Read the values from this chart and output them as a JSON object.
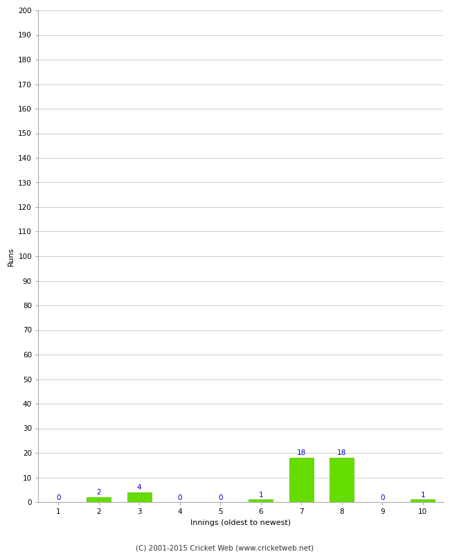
{
  "xlabel": "Innings (oldest to newest)",
  "ylabel": "Runs",
  "categories": [
    1,
    2,
    3,
    4,
    5,
    6,
    7,
    8,
    9,
    10
  ],
  "values": [
    0,
    2,
    4,
    0,
    0,
    1,
    18,
    18,
    0,
    1
  ],
  "bar_color": "#66dd00",
  "bar_edge_color": "#55bb00",
  "label_color": "#0000cc",
  "ylim": [
    0,
    200
  ],
  "yticks": [
    0,
    10,
    20,
    30,
    40,
    50,
    60,
    70,
    80,
    90,
    100,
    110,
    120,
    130,
    140,
    150,
    160,
    170,
    180,
    190,
    200
  ],
  "background_color": "#ffffff",
  "grid_color": "#cccccc",
  "footer": "(C) 2001-2015 Cricket Web (www.cricketweb.net)",
  "label_fontsize": 7.5,
  "axis_label_fontsize": 8,
  "tick_fontsize": 7.5,
  "footer_fontsize": 7.5
}
